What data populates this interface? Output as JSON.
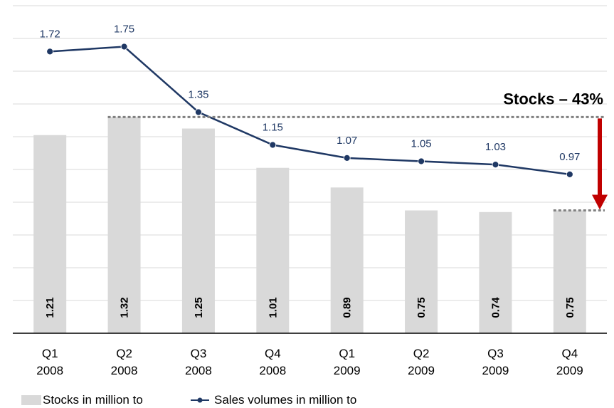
{
  "chart_data": {
    "type": "bar",
    "categories": [
      [
        "Q1",
        "2008"
      ],
      [
        "Q2",
        "2008"
      ],
      [
        "Q3",
        "2008"
      ],
      [
        "Q4",
        "2008"
      ],
      [
        "Q1",
        "2009"
      ],
      [
        "Q2",
        "2009"
      ],
      [
        "Q3",
        "2009"
      ],
      [
        "Q4",
        "2009"
      ]
    ],
    "series": [
      {
        "name": "Stocks in million to",
        "type": "bar",
        "values": [
          1.21,
          1.32,
          1.25,
          1.01,
          0.89,
          0.75,
          0.74,
          0.75
        ],
        "labels": [
          "1.21",
          "1.32",
          "1.25",
          "1.01",
          "0.89",
          "0.75",
          "0.74",
          "0.75"
        ],
        "color": "#d9d9d9"
      },
      {
        "name": "Sales volumes in million to",
        "type": "line",
        "values": [
          1.72,
          1.75,
          1.35,
          1.15,
          1.07,
          1.05,
          1.03,
          0.97
        ],
        "labels": [
          "1.72",
          "1.75",
          "1.35",
          "1.15",
          "1.07",
          "1.05",
          "1.03",
          "0.97"
        ],
        "color": "#1f3864"
      }
    ],
    "ylim": [
      0,
      2.0
    ],
    "grid": true,
    "legend": "bottom-left",
    "annotation": {
      "text": "Stocks – 43%",
      "from_value": 1.32,
      "to_value": 0.75,
      "arrow_color": "#c00000",
      "line_color": "#808080"
    }
  }
}
